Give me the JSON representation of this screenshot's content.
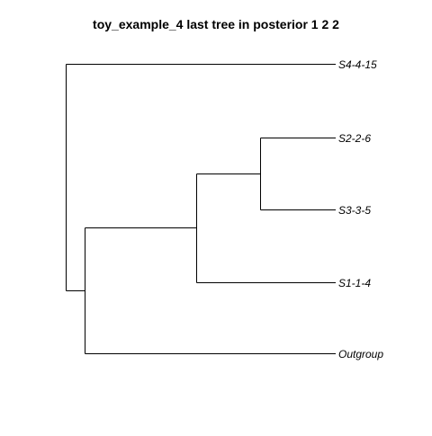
{
  "title": "toy_example_4 last tree in posterior 1 2 2",
  "tree": {
    "style": {
      "line_color": "#000000",
      "label_style": "italic"
    },
    "tips": [
      {
        "id": "s4",
        "label": "S4-4-15"
      },
      {
        "id": "s2",
        "label": "S2-2-6"
      },
      {
        "id": "s3",
        "label": "S3-3-5"
      },
      {
        "id": "s1",
        "label": "S1-1-4"
      },
      {
        "id": "out",
        "label": "Outgroup"
      }
    ]
  }
}
